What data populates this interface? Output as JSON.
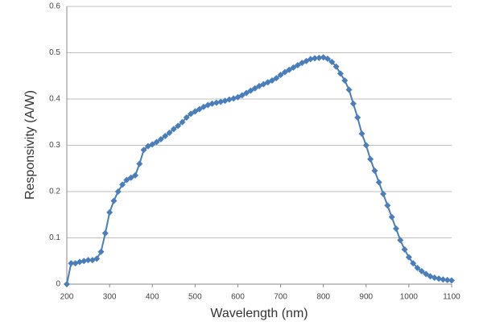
{
  "chart_data": {
    "type": "line",
    "x_label": "Wavelength (nm)",
    "y_label": "Responsivity (A/W)",
    "x": [
      200,
      210,
      220,
      230,
      240,
      250,
      260,
      270,
      280,
      290,
      300,
      310,
      320,
      330,
      340,
      350,
      360,
      370,
      380,
      390,
      400,
      410,
      420,
      430,
      440,
      450,
      460,
      470,
      480,
      490,
      500,
      510,
      520,
      530,
      540,
      550,
      560,
      570,
      580,
      590,
      600,
      610,
      620,
      630,
      640,
      650,
      660,
      670,
      680,
      690,
      700,
      710,
      720,
      730,
      740,
      750,
      760,
      770,
      780,
      790,
      800,
      810,
      820,
      830,
      840,
      850,
      860,
      870,
      880,
      890,
      900,
      910,
      920,
      930,
      940,
      950,
      960,
      970,
      980,
      990,
      1000,
      1010,
      1020,
      1030,
      1040,
      1050,
      1060,
      1070,
      1080,
      1090,
      1100
    ],
    "series": [
      {
        "name": "Responsivity",
        "color": "#4a7ebb",
        "values": [
          0,
          0.045,
          0.045,
          0.048,
          0.05,
          0.052,
          0.052,
          0.055,
          0.07,
          0.11,
          0.155,
          0.18,
          0.2,
          0.215,
          0.225,
          0.23,
          0.235,
          0.26,
          0.29,
          0.298,
          0.302,
          0.307,
          0.313,
          0.32,
          0.327,
          0.335,
          0.342,
          0.35,
          0.36,
          0.368,
          0.373,
          0.378,
          0.383,
          0.387,
          0.39,
          0.392,
          0.394,
          0.396,
          0.399,
          0.401,
          0.404,
          0.408,
          0.413,
          0.418,
          0.423,
          0.428,
          0.432,
          0.436,
          0.44,
          0.445,
          0.452,
          0.458,
          0.463,
          0.468,
          0.473,
          0.478,
          0.482,
          0.486,
          0.488,
          0.489,
          0.49,
          0.487,
          0.48,
          0.47,
          0.455,
          0.44,
          0.42,
          0.39,
          0.36,
          0.325,
          0.3,
          0.27,
          0.245,
          0.22,
          0.195,
          0.17,
          0.145,
          0.12,
          0.095,
          0.075,
          0.058,
          0.045,
          0.035,
          0.028,
          0.022,
          0.017,
          0.014,
          0.012,
          0.01,
          0.009,
          0.008
        ]
      }
    ],
    "xlim": [
      200,
      1100
    ],
    "xticks": [
      200,
      300,
      400,
      500,
      600,
      700,
      800,
      900,
      1000,
      1100
    ],
    "ylim": [
      0,
      0.6
    ],
    "yticks": [
      0,
      0.1,
      0.2,
      0.3,
      0.4,
      0.5,
      0.6
    ],
    "grid": true
  }
}
